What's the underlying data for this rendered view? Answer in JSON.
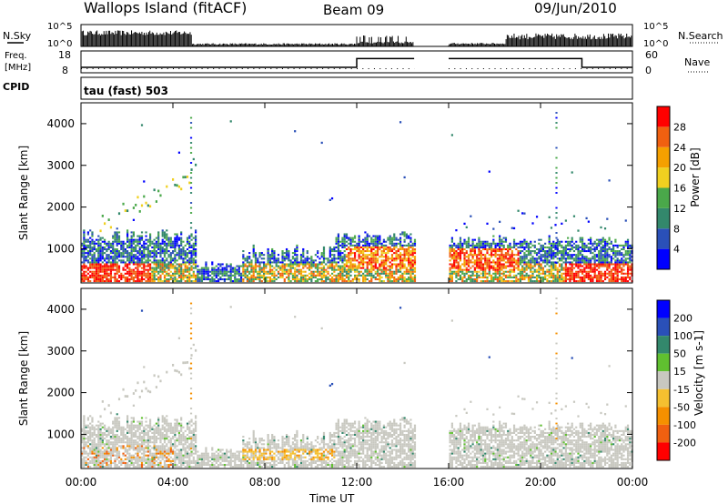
{
  "header": {
    "station": "Wallops Island (fitACF)",
    "beam": "Beam 09",
    "date": "09/Jun/2010"
  },
  "summary_panel": {
    "nsky_label": "N.Sky",
    "nsearch_label": "N.Search",
    "noise_ticks_left": [
      "10^5",
      "10^0"
    ],
    "noise_ticks_right": [
      "10^5",
      "10^0"
    ],
    "freq_label_1": "Freq.",
    "freq_label_2": "[MHz]",
    "freq_ticks": [
      "18",
      "8"
    ],
    "nave_ticks": [
      "60",
      "0"
    ],
    "nave_label": "Nave",
    "cpid_label": "CPID",
    "cpid_value": "tau (fast) 503"
  },
  "chart_data": [
    {
      "type": "heatmap",
      "name": "power",
      "ylabel": "Slant Range [km]",
      "xlabel": "Time UT",
      "x_ticks": [
        "00:00",
        "04:00",
        "08:00",
        "12:00",
        "16:00",
        "20:00",
        "00:00"
      ],
      "y_ticks": [
        1000,
        2000,
        3000,
        4000
      ],
      "ylim": [
        180,
        4500
      ],
      "xlim_hours": [
        0,
        24
      ],
      "colorbar": {
        "label": "Power [dB]",
        "ticks": [
          "4",
          "8",
          "12",
          "16",
          "20",
          "24",
          "28"
        ],
        "colors": [
          "#0000ff",
          "#2a50b8",
          "#33886c",
          "#4aa84a",
          "#f0d020",
          "#f5a000",
          "#f06010",
          "#ff0000"
        ]
      },
      "data_gap_hours": [
        14.5,
        16.0
      ]
    },
    {
      "type": "heatmap",
      "name": "velocity",
      "ylabel": "Slant Range [km]",
      "xlabel": "Time UT",
      "x_ticks": [
        "00:00",
        "04:00",
        "08:00",
        "12:00",
        "16:00",
        "20:00",
        "00:00"
      ],
      "y_ticks": [
        1000,
        2000,
        3000,
        4000
      ],
      "ylim": [
        180,
        4500
      ],
      "xlim_hours": [
        0,
        24
      ],
      "colorbar": {
        "label": "Velocity [m s-1]",
        "ticks": [
          "200",
          "100",
          "50",
          "15",
          "-15",
          "-50",
          "-100",
          "-200"
        ],
        "colors": [
          "#0000ff",
          "#2a50b8",
          "#33886c",
          "#60c030",
          "#c8c8c0",
          "#f5c030",
          "#f59000",
          "#f06010",
          "#ff0000"
        ]
      },
      "data_gap_hours": [
        14.5,
        16.0
      ]
    },
    {
      "type": "line",
      "name": "frequency",
      "x_hours": [
        0,
        12,
        12,
        14.5,
        16,
        21.8,
        21.8,
        24
      ],
      "values_mhz": [
        10.5,
        10.5,
        14.5,
        14.5,
        14.5,
        14.5,
        10.5,
        10.5
      ],
      "ylim": [
        8,
        18
      ]
    }
  ],
  "footer": {
    "time_label": "Time UT"
  },
  "colors": {
    "background": "#ffffff",
    "axis": "#000000",
    "gap": "#ffffff"
  }
}
